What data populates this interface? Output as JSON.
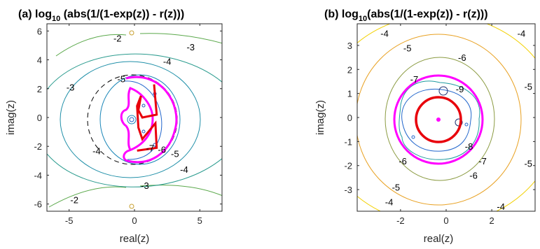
{
  "chart_data": [
    {
      "type": "contour",
      "panel": "(a)",
      "title_main": "log",
      "title_sub": "10",
      "title_rest": " (abs(1/(1-exp(z)) - r(z)))",
      "xlabel": "real(z)",
      "ylabel": "imag(z)",
      "xlim": [
        -6.7,
        6.7
      ],
      "ylim": [
        -6.5,
        6.5
      ],
      "xticks": [
        -5,
        0,
        5
      ],
      "yticks": [
        -6,
        -4,
        -2,
        0,
        2,
        4,
        6
      ],
      "contour_labels": [
        {
          "text": "-2",
          "x": -1.3,
          "y": 5.5
        },
        {
          "text": "-3",
          "x": 4.3,
          "y": 4.9
        },
        {
          "text": "-4",
          "x": 2.5,
          "y": 3.9
        },
        {
          "text": "-5",
          "x": -1.0,
          "y": 2.7
        },
        {
          "text": "-3",
          "x": -4.9,
          "y": 2.1
        },
        {
          "text": "-4",
          "x": -2.9,
          "y": -2.3
        },
        {
          "text": "-5",
          "x": 3.1,
          "y": -2.5
        },
        {
          "text": "-7",
          "x": 1.2,
          "y": -2.1
        },
        {
          "text": "-6",
          "x": 2.1,
          "y": -2.2
        },
        {
          "text": "-4",
          "x": 3.8,
          "y": -3.6
        },
        {
          "text": "-3",
          "x": 0.8,
          "y": -4.7
        },
        {
          "text": "-2",
          "x": -4.6,
          "y": -5.7
        }
      ],
      "series": [
        {
          "name": "Magenta contour",
          "color": "#ff00ff"
        },
        {
          "name": "Red curve",
          "color": "#e8000b",
          "x": [
            1.5,
            1.7,
            0.6,
            0.3,
            0.5,
            0.2,
            0.3,
            0.6,
            1.6,
            1.7,
            0.2
          ],
          "y": [
            2.3,
            0.2,
            0.0,
            0.5,
            1.5,
            0.8,
            -0.7,
            -1.5,
            -0.4,
            -2.1,
            -2.3
          ]
        }
      ],
      "colors": {
        "dashed_circle": "#000000"
      }
    },
    {
      "type": "contour",
      "panel": "(b)",
      "title_main": "log",
      "title_sub": "10",
      "title_rest": "(abs(1/(1-exp(z)) - r(z)))",
      "xlabel": "real(z)",
      "ylabel": "imag(z)",
      "xlim": [
        -3.9,
        3.9
      ],
      "ylim": [
        -3.9,
        3.9
      ],
      "xticks": [
        -2,
        0,
        2
      ],
      "yticks": [
        -3,
        -2,
        -1,
        0,
        1,
        2,
        3
      ],
      "contour_labels": [
        {
          "text": "-4",
          "x": -2.7,
          "y": 3.5
        },
        {
          "text": "-4",
          "x": 3.3,
          "y": 3.5
        },
        {
          "text": "-5",
          "x": -1.7,
          "y": 2.9
        },
        {
          "text": "-6",
          "x": 0.7,
          "y": 2.5
        },
        {
          "text": "-5",
          "x": 3.6,
          "y": 1.3
        },
        {
          "text": "-7",
          "x": -1.4,
          "y": 1.6
        },
        {
          "text": "-9",
          "x": 0.6,
          "y": 1.2
        },
        {
          "text": "-8",
          "x": 1.0,
          "y": -1.2
        },
        {
          "text": "-7",
          "x": 1.6,
          "y": -1.8
        },
        {
          "text": "-6",
          "x": -1.9,
          "y": -1.8
        },
        {
          "text": "-6",
          "x": 1.2,
          "y": -2.4
        },
        {
          "text": "-5",
          "x": 3.6,
          "y": -1.9
        },
        {
          "text": "-5",
          "x": -2.2,
          "y": -2.9
        },
        {
          "text": "-4",
          "x": -2.5,
          "y": -3.5
        },
        {
          "text": "-4",
          "x": 2.4,
          "y": -3.7
        }
      ],
      "series": [
        {
          "name": "Magenta circle",
          "color": "#ff00ff",
          "radius": 1.95
        },
        {
          "name": "Red circle",
          "color": "#e8000b",
          "radius": 1.0
        },
        {
          "name": "Center point",
          "color": "#ff00ff",
          "x": [
            0
          ],
          "y": [
            0
          ]
        }
      ]
    }
  ]
}
